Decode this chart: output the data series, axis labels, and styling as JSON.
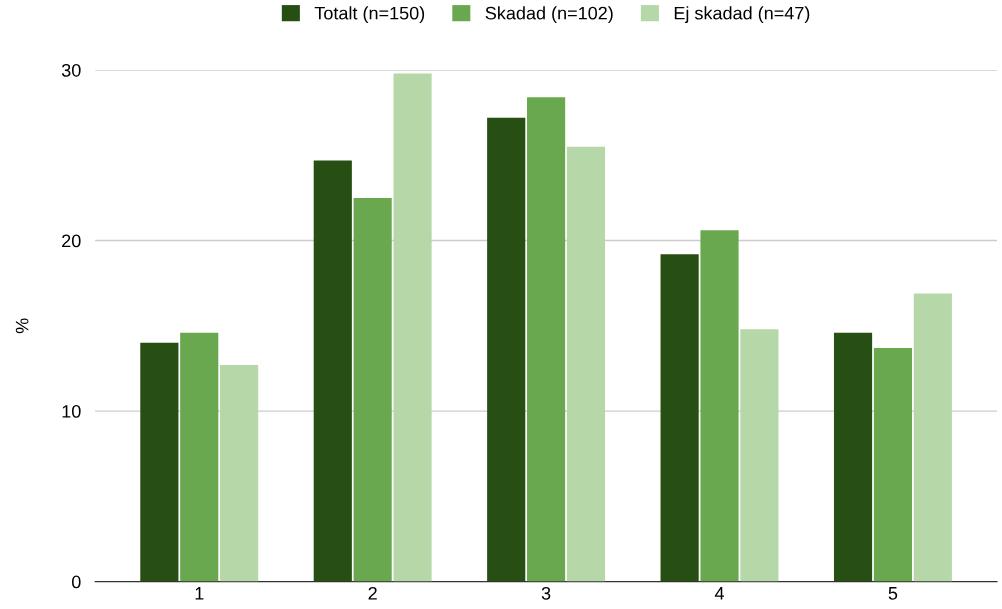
{
  "chart_data": {
    "type": "bar",
    "ylabel": "%",
    "categories": [
      "1",
      "2",
      "3",
      "4",
      "5"
    ],
    "series": [
      {
        "name": "Totalt (n=150)",
        "color": "#274e13",
        "values": [
          14.0,
          24.7,
          27.2,
          19.2,
          14.6
        ]
      },
      {
        "name": "Skadad (n=102)",
        "color": "#6aa84f",
        "values": [
          14.6,
          22.5,
          28.4,
          20.6,
          13.7
        ]
      },
      {
        "name": "Ej skadad (n=47)",
        "color": "#b6d7a8",
        "values": [
          12.7,
          29.8,
          25.5,
          14.8,
          16.9
        ]
      }
    ],
    "ylim": [
      0,
      30
    ],
    "yticks": [
      0,
      10,
      20,
      30
    ],
    "grid": "y",
    "legend": "top"
  }
}
